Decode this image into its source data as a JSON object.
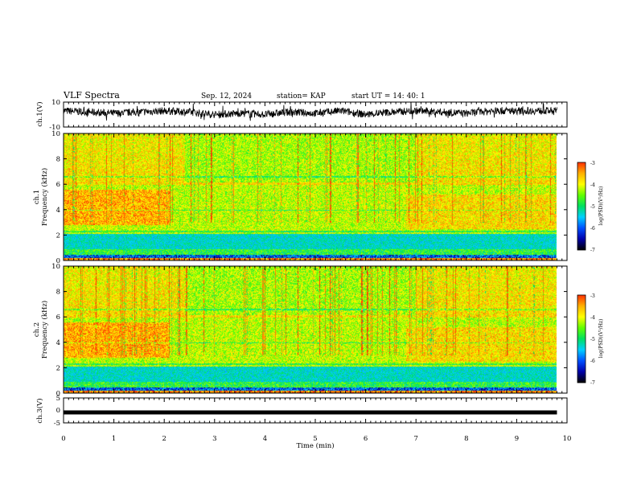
{
  "header": {
    "title": "VLF Spectra",
    "date": "Sep. 12, 2024",
    "station": "station= KAP",
    "start": "start  UT  =   14: 40: 1"
  },
  "colors": {
    "colormap": [
      "#000000",
      "#0000aa",
      "#0050ff",
      "#00d0ff",
      "#00e060",
      "#60ff00",
      "#ffff00",
      "#ffb000",
      "#ff3000",
      "#ffffff"
    ]
  },
  "chart_data": [
    {
      "id": "ch1-waveform",
      "type": "line",
      "ylabel": "ch.1(V)",
      "ylim": [
        -10,
        10
      ],
      "ytick_labels": [
        "10",
        "-10"
      ],
      "xlim": [
        0,
        10
      ],
      "grid": false,
      "x": [
        0,
        0.5,
        1,
        1.5,
        2,
        2.5,
        3,
        3.5,
        4,
        4.5,
        5,
        5.5,
        6,
        6.5,
        7,
        7.5,
        8,
        8.5,
        9,
        9.5,
        9.8
      ],
      "values": [
        3,
        2,
        1,
        2,
        3,
        2,
        0,
        1,
        0,
        2,
        1,
        3,
        0,
        2,
        3,
        2,
        1,
        3,
        3,
        3,
        3
      ]
    },
    {
      "id": "ch1-spectrogram",
      "type": "heatmap",
      "ylabel": "ch.1\nFrequency  (kHz)",
      "ylim": [
        0,
        10
      ],
      "ytick_labels": [
        "0",
        "2",
        "4",
        "6",
        "8",
        "10"
      ],
      "xlim": [
        0,
        10
      ],
      "data_end_min": 9.8,
      "colorbar": {
        "label": "log(PSD)(V²/Hz)",
        "range": [
          -7,
          -3
        ],
        "tick_labels": [
          "-3",
          "-4",
          "-5",
          "-6",
          "-7"
        ]
      }
    },
    {
      "id": "ch2-spectrogram",
      "type": "heatmap",
      "ylabel": "ch.2\nFrequency  (kHz)",
      "ylim": [
        0,
        10
      ],
      "ytick_labels": [
        "0",
        "2",
        "4",
        "6",
        "8",
        "10"
      ],
      "xlim": [
        0,
        10
      ],
      "data_end_min": 9.8,
      "colorbar": {
        "label": "log(PSD)(V²/Hz)",
        "range": [
          -7,
          -3
        ],
        "tick_labels": [
          "-3",
          "-4",
          "-5",
          "-6",
          "-7"
        ]
      }
    },
    {
      "id": "ch3-waveform",
      "type": "line",
      "ylabel": "ch.3(V)",
      "ylim": [
        -5,
        5
      ],
      "ytick_labels": [
        "5",
        "0",
        "-5"
      ],
      "xlim": [
        0,
        10
      ],
      "xlabel": "Time  (min)",
      "xtick_labels": [
        "0",
        "1",
        "2",
        "3",
        "4",
        "5",
        "6",
        "7",
        "8",
        "9",
        "10"
      ],
      "x": [
        0,
        9.8
      ],
      "values": [
        -0.8,
        -0.8
      ]
    }
  ]
}
